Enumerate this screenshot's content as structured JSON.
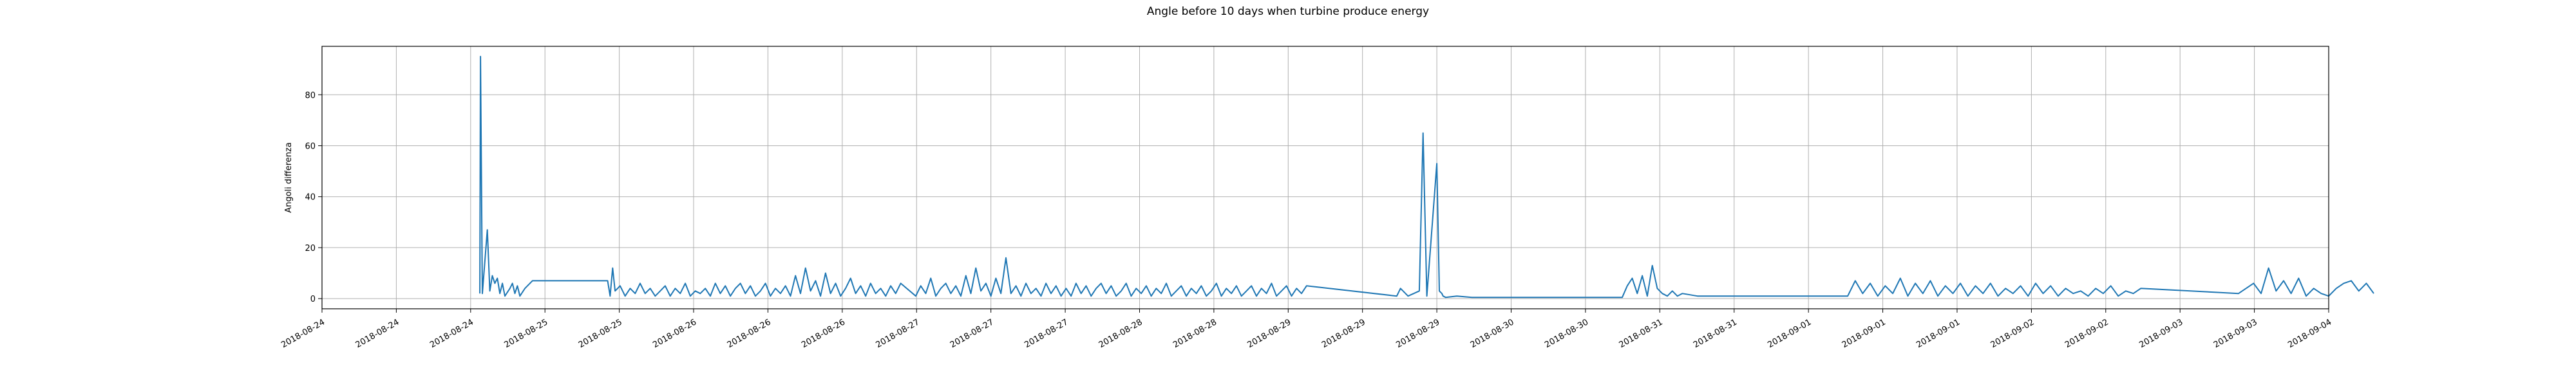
{
  "chart_data": {
    "type": "line",
    "title": "Angle before 10 days when turbine produce energy",
    "xlabel": "",
    "ylabel": "Angoli differenza",
    "xlim": [
      "2018-08-23T21:00",
      "2018-09-04T00:00"
    ],
    "ylim": [
      -4,
      99
    ],
    "grid": true,
    "line_color": "#1f77b4",
    "x_tick_labels": [
      "2018-08-24",
      "2018-08-24",
      "2018-08-24",
      "2018-08-25",
      "2018-08-25",
      "2018-08-26",
      "2018-08-26",
      "2018-08-26",
      "2018-08-27",
      "2018-08-27",
      "2018-08-27",
      "2018-08-28",
      "2018-08-28",
      "2018-08-29",
      "2018-08-29",
      "2018-08-29",
      "2018-08-30",
      "2018-08-30",
      "2018-08-31",
      "2018-08-31",
      "2018-09-01",
      "2018-09-01",
      "2018-09-01",
      "2018-09-02",
      "2018-09-02",
      "2018-09-03",
      "2018-09-03",
      "2018-09-04"
    ],
    "y_ticks": [
      0,
      20,
      40,
      60,
      80
    ],
    "series": [
      {
        "x": [
          "2018-08-24T18:00",
          "2018-08-24T18:05",
          "2018-08-24T18:20",
          "2018-08-24T19:00",
          "2018-08-24T19:20",
          "2018-08-24T19:40",
          "2018-08-24T20:00",
          "2018-08-24T20:20",
          "2018-08-24T20:40",
          "2018-08-24T21:00",
          "2018-08-24T21:20",
          "2018-08-24T22:00",
          "2018-08-24T22:20",
          "2018-08-24T22:40",
          "2018-08-24T23:00",
          "2018-08-24T23:20",
          "2018-08-25T00:00",
          "2018-08-25T01:00",
          "2018-08-25T11:00",
          "2018-08-25T11:20",
          "2018-08-25T11:40",
          "2018-08-25T12:00",
          "2018-08-25T12:40",
          "2018-08-25T13:20",
          "2018-08-25T14:00",
          "2018-08-25T14:40",
          "2018-08-25T15:20",
          "2018-08-25T16:00",
          "2018-08-25T16:40",
          "2018-08-25T17:20",
          "2018-08-25T18:00",
          "2018-08-25T18:40",
          "2018-08-25T19:20",
          "2018-08-25T20:00",
          "2018-08-25T20:40",
          "2018-08-25T21:20",
          "2018-08-25T22:00",
          "2018-08-25T22:40",
          "2018-08-25T23:20",
          "2018-08-26T00:00",
          "2018-08-26T00:40",
          "2018-08-26T01:20",
          "2018-08-26T02:00",
          "2018-08-26T02:40",
          "2018-08-26T03:20",
          "2018-08-26T04:00",
          "2018-08-26T04:40",
          "2018-08-26T05:20",
          "2018-08-26T06:00",
          "2018-08-26T06:40",
          "2018-08-26T07:20",
          "2018-08-26T08:00",
          "2018-08-26T08:40",
          "2018-08-26T09:20",
          "2018-08-26T10:00",
          "2018-08-26T10:40",
          "2018-08-26T11:20",
          "2018-08-26T12:00",
          "2018-08-26T12:40",
          "2018-08-26T13:20",
          "2018-08-26T14:00",
          "2018-08-26T14:40",
          "2018-08-26T15:20",
          "2018-08-26T16:00",
          "2018-08-26T16:40",
          "2018-08-26T17:20",
          "2018-08-26T18:00",
          "2018-08-26T18:40",
          "2018-08-26T19:20",
          "2018-08-26T20:00",
          "2018-08-26T20:40",
          "2018-08-26T21:20",
          "2018-08-26T22:00",
          "2018-08-26T22:40",
          "2018-08-26T23:20",
          "2018-08-27T00:00",
          "2018-08-27T00:40",
          "2018-08-27T01:20",
          "2018-08-27T02:00",
          "2018-08-27T04:00",
          "2018-08-27T04:40",
          "2018-08-27T05:20",
          "2018-08-27T06:00",
          "2018-08-27T06:40",
          "2018-08-27T07:20",
          "2018-08-27T08:00",
          "2018-08-27T08:40",
          "2018-08-27T09:20",
          "2018-08-27T10:00",
          "2018-08-27T10:40",
          "2018-08-27T11:20",
          "2018-08-27T12:00",
          "2018-08-27T12:40",
          "2018-08-27T13:20",
          "2018-08-27T14:00",
          "2018-08-27T14:40",
          "2018-08-27T15:20",
          "2018-08-27T16:00",
          "2018-08-27T16:40",
          "2018-08-27T17:20",
          "2018-08-27T18:00",
          "2018-08-27T18:40",
          "2018-08-27T19:20",
          "2018-08-27T20:00",
          "2018-08-27T20:40",
          "2018-08-27T21:20",
          "2018-08-27T22:00",
          "2018-08-27T22:40",
          "2018-08-27T23:20",
          "2018-08-28T00:00",
          "2018-08-28T00:40",
          "2018-08-28T01:20",
          "2018-08-28T02:00",
          "2018-08-28T02:40",
          "2018-08-28T03:20",
          "2018-08-28T04:00",
          "2018-08-28T04:40",
          "2018-08-28T05:20",
          "2018-08-28T06:00",
          "2018-08-28T06:40",
          "2018-08-28T07:20",
          "2018-08-28T08:00",
          "2018-08-28T08:40",
          "2018-08-28T09:20",
          "2018-08-28T10:00",
          "2018-08-28T10:40",
          "2018-08-28T11:20",
          "2018-08-28T12:00",
          "2018-08-28T12:40",
          "2018-08-28T13:20",
          "2018-08-28T14:00",
          "2018-08-28T14:40",
          "2018-08-28T15:20",
          "2018-08-28T16:00",
          "2018-08-28T16:40",
          "2018-08-28T17:20",
          "2018-08-28T18:00",
          "2018-08-28T18:40",
          "2018-08-28T19:20",
          "2018-08-28T20:00",
          "2018-08-28T20:40",
          "2018-08-28T21:20",
          "2018-08-28T22:00",
          "2018-08-28T22:40",
          "2018-08-28T23:20",
          "2018-08-29T00:00",
          "2018-08-29T00:40",
          "2018-08-29T01:20",
          "2018-08-29T02:00",
          "2018-08-29T02:40",
          "2018-08-29T03:20",
          "2018-08-29T04:00",
          "2018-08-29T04:40",
          "2018-08-29T05:20",
          "2018-08-29T06:00",
          "2018-08-29T06:40",
          "2018-08-29T07:20",
          "2018-08-29T08:00",
          "2018-08-29T20:00",
          "2018-08-29T20:30",
          "2018-08-29T21:30",
          "2018-08-29T23:00",
          "2018-08-29T23:30",
          "2018-08-30T00:00",
          "2018-08-30T01:20",
          "2018-08-30T01:40",
          "2018-08-30T02:00",
          "2018-08-30T02:10",
          "2018-08-30T02:30",
          "2018-08-30T04:00",
          "2018-08-30T06:00",
          "2018-08-30T07:00",
          "2018-08-30T08:00",
          "2018-08-30T10:00",
          "2018-08-31T02:00",
          "2018-08-31T02:40",
          "2018-08-31T03:20",
          "2018-08-31T04:00",
          "2018-08-31T04:40",
          "2018-08-31T05:20",
          "2018-08-31T06:00",
          "2018-08-31T06:40",
          "2018-08-31T07:20",
          "2018-08-31T08:00",
          "2018-08-31T08:40",
          "2018-08-31T09:20",
          "2018-08-31T10:00",
          "2018-08-31T12:00",
          "2018-09-01T08:00",
          "2018-09-01T09:00",
          "2018-09-01T10:00",
          "2018-09-01T11:00",
          "2018-09-01T12:00",
          "2018-09-01T13:00",
          "2018-09-01T14:00",
          "2018-09-01T15:00",
          "2018-09-01T16:00",
          "2018-09-01T17:00",
          "2018-09-01T18:00",
          "2018-09-01T19:00",
          "2018-09-01T20:00",
          "2018-09-01T21:00",
          "2018-09-01T22:00",
          "2018-09-01T23:00",
          "2018-09-02T00:00",
          "2018-09-02T01:00",
          "2018-09-02T02:00",
          "2018-09-02T03:00",
          "2018-09-02T04:00",
          "2018-09-02T05:00",
          "2018-09-02T06:00",
          "2018-09-02T07:00",
          "2018-09-02T08:00",
          "2018-09-02T09:00",
          "2018-09-02T10:00",
          "2018-09-02T11:00",
          "2018-09-02T12:00",
          "2018-09-02T13:00",
          "2018-09-02T14:00",
          "2018-09-02T15:00",
          "2018-09-02T16:00",
          "2018-09-02T17:00",
          "2018-09-02T18:00",
          "2018-09-02T19:00",
          "2018-09-02T20:00",
          "2018-09-02T21:00",
          "2018-09-02T22:00",
          "2018-09-02T23:00",
          "2018-09-03T12:00",
          "2018-09-03T13:00",
          "2018-09-03T14:00",
          "2018-09-03T15:00",
          "2018-09-03T16:00",
          "2018-09-03T17:00",
          "2018-09-03T18:00",
          "2018-09-03T19:00",
          "2018-09-03T20:00",
          "2018-09-03T21:00",
          "2018-09-03T22:00",
          "2018-09-03T23:00",
          "2018-09-04T00:00",
          "2018-09-04T01:00",
          "2018-09-04T02:00",
          "2018-09-04T03:00",
          "2018-09-04T04:00",
          "2018-09-04T05:00",
          "2018-09-04T06:00"
        ],
        "y": [
          2,
          95,
          2,
          27,
          3,
          9,
          6,
          8,
          2,
          6,
          1,
          4,
          6,
          2,
          5,
          1,
          4,
          7,
          7,
          1,
          12,
          3,
          5,
          1,
          4,
          2,
          6,
          2,
          4,
          1,
          3,
          5,
          1,
          4,
          2,
          6,
          1,
          3,
          2,
          4,
          1,
          6,
          2,
          5,
          1,
          4,
          6,
          2,
          5,
          1,
          3,
          6,
          1,
          4,
          2,
          5,
          1,
          9,
          2,
          12,
          3,
          7,
          1,
          10,
          2,
          6,
          1,
          4,
          8,
          2,
          5,
          1,
          6,
          2,
          4,
          1,
          5,
          2,
          6,
          1,
          5,
          2,
          8,
          1,
          4,
          6,
          2,
          5,
          1,
          9,
          2,
          12,
          3,
          6,
          1,
          8,
          2,
          16,
          2,
          5,
          1,
          6,
          2,
          4,
          1,
          6,
          2,
          5,
          1,
          4,
          1,
          6,
          2,
          5,
          1,
          4,
          6,
          2,
          5,
          1,
          3,
          6,
          1,
          4,
          2,
          5,
          1,
          4,
          2,
          6,
          1,
          3,
          5,
          1,
          4,
          2,
          5,
          1,
          3,
          6,
          1,
          4,
          2,
          5,
          1,
          3,
          5,
          1,
          4,
          2,
          6,
          1,
          3,
          5,
          1,
          4,
          2,
          5,
          1,
          4,
          1,
          3,
          65,
          1,
          53,
          3,
          2,
          1,
          0.5,
          1,
          0.5,
          0.5,
          0.5,
          0.5,
          0.5,
          5,
          8,
          2,
          9,
          1,
          13,
          4,
          2,
          1,
          3,
          1,
          2,
          1,
          1,
          7,
          2,
          6,
          1,
          5,
          2,
          8,
          1,
          6,
          2,
          7,
          1,
          5,
          2,
          6,
          1,
          5,
          2,
          6,
          1,
          4,
          2,
          5,
          1,
          6,
          2,
          5,
          1,
          4,
          2,
          3,
          1,
          4,
          2,
          5,
          1,
          3,
          2,
          4,
          2,
          4,
          6,
          2,
          12,
          3,
          7,
          2,
          8,
          1,
          4,
          2,
          1,
          4,
          6,
          7,
          3,
          6,
          2
        ]
      }
    ]
  }
}
